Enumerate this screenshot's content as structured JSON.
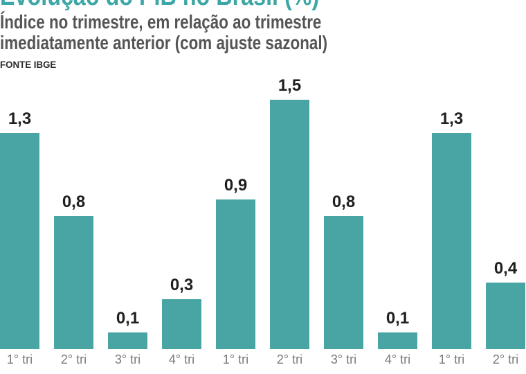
{
  "header": {
    "title": "Evolução do PIB no Brasil (%)",
    "subtitle_line1": "Índice no trimestre, em relação ao trimestre",
    "subtitle_line2": "imediatamente anterior (com ajuste sazonal)",
    "source": "FONTE IBGE"
  },
  "colors": {
    "bar": "#48A5A3",
    "title": "#3DA6A6",
    "subtitle": "#555555",
    "source": "#2B2B2B",
    "value_label": "#1F1F1F",
    "tick_label": "#7A7A7A"
  },
  "chart_data": {
    "type": "bar",
    "title": "Evolução do PIB no Brasil (%)",
    "subtitle": "Índice no trimestre, em relação ao trimestre imediatamente anterior (com ajuste sazonal)",
    "source": "FONTE IBGE",
    "categories": [
      "1° tri",
      "2° tri",
      "3° tri",
      "4° tri",
      "1° tri",
      "2° tri",
      "3° tri",
      "4° tri",
      "1° tri",
      "2° tri"
    ],
    "values": [
      1.3,
      0.8,
      0.1,
      0.3,
      0.9,
      1.5,
      0.8,
      0.1,
      1.3,
      0.4
    ],
    "value_labels": [
      "1,3",
      "0,8",
      "0,1",
      "0,3",
      "0,9",
      "1,5",
      "0,8",
      "0,1",
      "1,3",
      "0,4"
    ],
    "ylim": [
      0,
      1.6
    ],
    "grid": false,
    "legend": null,
    "bar_color": "#48A5A3"
  }
}
